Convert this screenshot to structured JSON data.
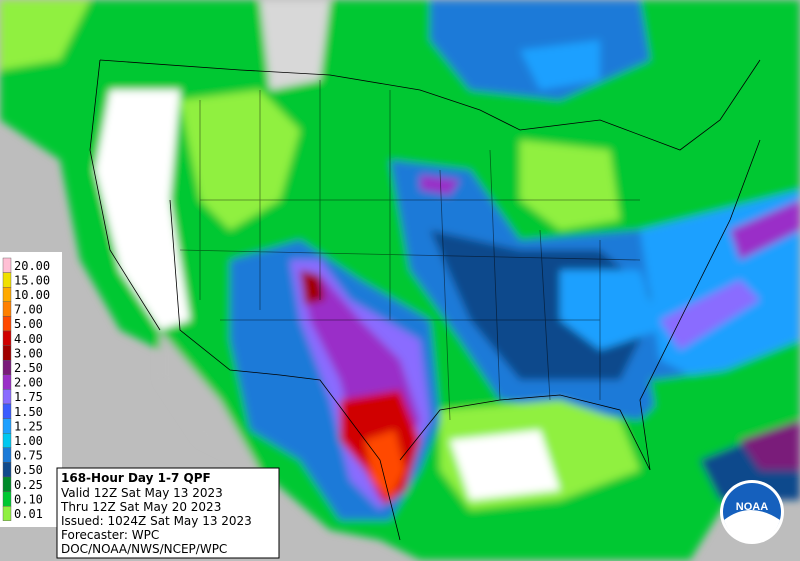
{
  "legend": {
    "items": [
      {
        "label": "20.00",
        "color": "#ffbfd4"
      },
      {
        "label": "15.00",
        "color": "#f0e000"
      },
      {
        "label": "10.00",
        "color": "#ffaa00"
      },
      {
        "label": "7.00",
        "color": "#ff8000"
      },
      {
        "label": "5.00",
        "color": "#ff4800"
      },
      {
        "label": "4.00",
        "color": "#d00000"
      },
      {
        "label": "3.00",
        "color": "#a00000"
      },
      {
        "label": "2.50",
        "color": "#7a1a7a"
      },
      {
        "label": "2.00",
        "color": "#9a2ec8"
      },
      {
        "label": "1.75",
        "color": "#8a6cff"
      },
      {
        "label": "1.50",
        "color": "#3a5cff"
      },
      {
        "label": "1.25",
        "color": "#1ea0ff"
      },
      {
        "label": "1.00",
        "color": "#00c8f0"
      },
      {
        "label": "0.75",
        "color": "#1a7ad8"
      },
      {
        "label": "0.50",
        "color": "#104a8c"
      },
      {
        "label": "0.25",
        "color": "#008a2a"
      },
      {
        "label": "0.10",
        "color": "#00c832"
      },
      {
        "label": "0.01",
        "color": "#90f040"
      }
    ]
  },
  "info": {
    "title": "168-Hour Day 1-7 QPF",
    "valid": "Valid 12Z Sat May 13 2023",
    "thru": "Thru 12Z Sat May 20 2023",
    "issued": "Issued: 1024Z Sat May 13 2023",
    "forecaster": "Forecaster: WPC",
    "agency": "DOC/NOAA/NWS/NCEP/WPC"
  },
  "logo": {
    "text": "NOAA"
  }
}
